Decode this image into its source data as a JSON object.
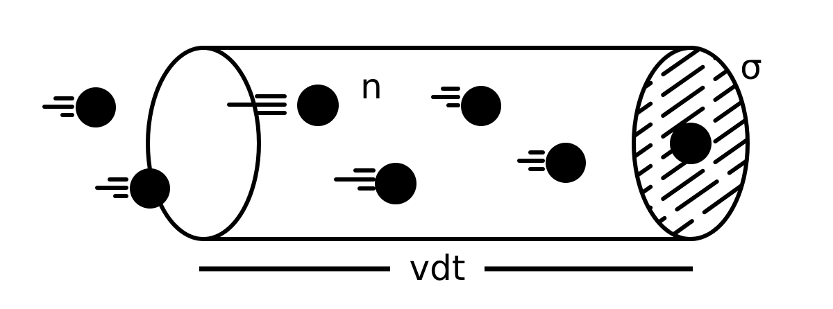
{
  "labels": {
    "density": "n",
    "cross_section": "σ",
    "length": "vdt"
  }
}
